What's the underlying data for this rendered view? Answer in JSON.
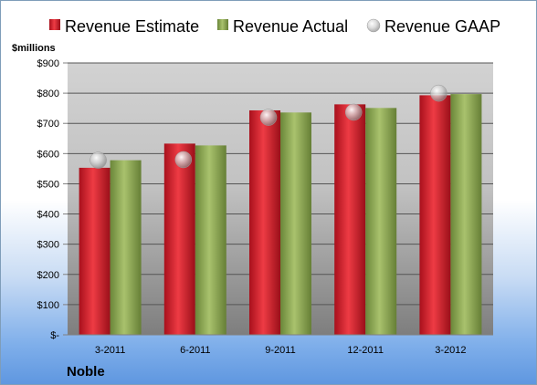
{
  "company": "Noble",
  "unit_label": "$millions",
  "colors": {
    "estimate": "#c8202a",
    "actual": "#8aa452",
    "gaap": "#c0c0c0"
  },
  "legend": {
    "estimate": "Revenue Estimate",
    "actual": "Revenue Actual",
    "gaap": "Revenue GAAP"
  },
  "chart_data": {
    "type": "bar",
    "title": "",
    "xlabel": "",
    "ylabel": "$millions",
    "categories": [
      "3-2011",
      "6-2011",
      "9-2011",
      "12-2011",
      "3-2012"
    ],
    "series": [
      {
        "name": "Revenue Estimate",
        "type": "bar",
        "values": [
          553,
          633,
          743,
          763,
          793
        ]
      },
      {
        "name": "Revenue Actual",
        "type": "bar",
        "values": [
          578,
          627,
          736,
          751,
          797
        ]
      },
      {
        "name": "Revenue GAAP",
        "type": "scatter",
        "values": [
          578,
          580,
          720,
          737,
          800
        ]
      }
    ],
    "ylim": [
      0,
      900
    ],
    "yticks": [
      0,
      100,
      200,
      300,
      400,
      500,
      600,
      700,
      800,
      900
    ],
    "ytick_labels": [
      "$-",
      "$100",
      "$200",
      "$300",
      "$400",
      "$500",
      "$600",
      "$700",
      "$800",
      "$900"
    ],
    "grid": true,
    "legend_position": "top"
  }
}
